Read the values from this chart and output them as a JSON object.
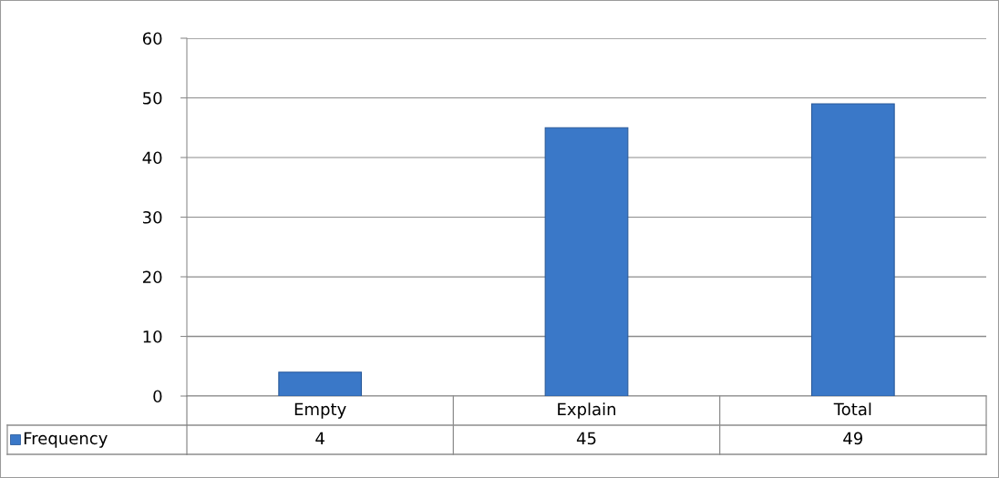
{
  "chart_data": {
    "type": "bar",
    "categories": [
      "Empty",
      "Explain",
      "Total"
    ],
    "series": [
      {
        "name": "Frequency",
        "color": "#3a78c8",
        "values": [
          4,
          45,
          49
        ]
      }
    ],
    "ylim": [
      0,
      60
    ],
    "yticks": [
      0,
      10,
      20,
      30,
      40,
      50,
      60
    ],
    "grid": "y",
    "data_labels": true,
    "legend": "bottom"
  }
}
